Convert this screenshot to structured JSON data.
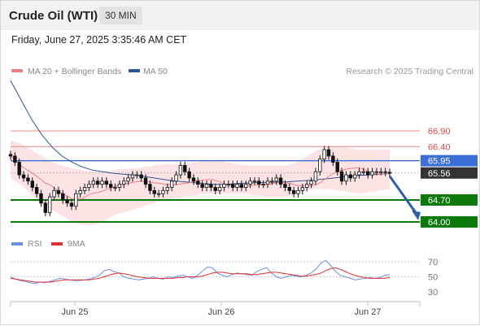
{
  "header": {
    "title": "Crude Oil (WTI)",
    "interval": "30 MIN",
    "datetime": "Friday, June 27, 2025 3:35:46 AM CET"
  },
  "legend": {
    "ma20": "MA 20 + Bollinger Bands",
    "ma50": "MA 50",
    "copyright": "Research © 2025 Trading Central",
    "rsi": "RSI",
    "rsi_ma": "9MA"
  },
  "colors": {
    "ma20": "#f08080",
    "ma50": "#2f5597",
    "bands": "#fde3e3",
    "current": "#333333",
    "pivot": "#3b6fd6",
    "support": "#0b7a0b",
    "resistance": "#f08a8a",
    "candle": "#111111",
    "rsi": "#6b8fe0",
    "rsi_ma": "#e03030",
    "arrow": "#2e5fa6"
  },
  "chart_data": [
    {
      "type": "candlestick",
      "x_ticks": [
        "Jun 25",
        "Jun 26",
        "Jun 27"
      ],
      "levels": [
        {
          "label": "66.90",
          "value": 66.9,
          "role": "resistance"
        },
        {
          "label": "66.40",
          "value": 66.4,
          "role": "resistance"
        },
        {
          "label": "65.95",
          "value": 65.95,
          "role": "pivot"
        },
        {
          "label": "65.56",
          "value": 65.56,
          "role": "current"
        },
        {
          "label": "64.70",
          "value": 64.7,
          "role": "support"
        },
        {
          "label": "64.00",
          "value": 64.0,
          "role": "support"
        }
      ],
      "current_price": 65.56,
      "forecast": {
        "from": 65.56,
        "to": 64.0,
        "direction": "down"
      },
      "close": [
        66.1,
        65.9,
        65.5,
        65.4,
        65.3,
        65.1,
        64.9,
        64.6,
        64.3,
        64.8,
        65.0,
        64.9,
        64.7,
        64.6,
        64.5,
        64.9,
        65.0,
        65.1,
        65.2,
        65.3,
        65.2,
        65.3,
        65.2,
        65.1,
        65.1,
        65.2,
        65.3,
        65.4,
        65.5,
        65.5,
        65.4,
        65.2,
        65.0,
        64.9,
        64.9,
        65.0,
        65.1,
        65.3,
        65.5,
        65.8,
        65.6,
        65.4,
        65.3,
        65.2,
        65.1,
        65.2,
        65.1,
        65.0,
        65.1,
        65.2,
        65.2,
        65.1,
        65.2,
        65.1,
        65.2,
        65.3,
        65.3,
        65.2,
        65.2,
        65.3,
        65.3,
        65.4,
        65.2,
        65.1,
        65.0,
        64.9,
        65.0,
        65.1,
        65.2,
        65.3,
        65.6,
        66.0,
        66.3,
        66.1,
        65.9,
        65.6,
        65.3,
        65.5,
        65.4,
        65.5,
        65.6,
        65.6,
        65.5,
        65.6,
        65.6,
        65.6,
        65.58,
        65.56
      ],
      "low_envelope": [
        65.4,
        65.2,
        64.9,
        64.6,
        64.4,
        64.2,
        64.0,
        63.9,
        63.9,
        64.0,
        64.2,
        64.3,
        64.4,
        64.5,
        64.6,
        64.7,
        64.75,
        64.8,
        64.85,
        64.9,
        64.9,
        64.9,
        64.9,
        64.9,
        64.85,
        64.8,
        64.8,
        64.8,
        64.9,
        65.0,
        65.05,
        65.05,
        65.0,
        64.95,
        64.9,
        64.95,
        65.0,
        65.05
      ],
      "high_envelope": [
        66.6,
        66.5,
        66.3,
        66.1,
        65.9,
        65.8,
        65.7,
        65.65,
        65.6,
        65.6,
        65.65,
        65.7,
        65.7,
        65.75,
        65.8,
        65.85,
        65.85,
        65.85,
        65.9,
        65.95,
        65.95,
        65.9,
        65.85,
        65.8,
        65.8,
        65.8,
        65.8,
        65.8,
        65.9,
        66.1,
        66.3,
        66.4,
        66.4,
        66.35,
        66.3,
        66.3,
        66.3,
        66.3
      ],
      "ma50": [
        68.5,
        67.9,
        67.3,
        66.8,
        66.4,
        66.1,
        65.9,
        65.75,
        65.65,
        65.6,
        65.55,
        65.52,
        65.5,
        65.45,
        65.4,
        65.35,
        65.3,
        65.28,
        65.25,
        65.22,
        65.2,
        65.2,
        65.22,
        65.24,
        65.25,
        65.26,
        65.27,
        65.28,
        65.3,
        65.32,
        65.35,
        65.38,
        65.42,
        65.45,
        65.48,
        65.5,
        65.52,
        65.54
      ]
    },
    {
      "type": "line",
      "name": "RSI",
      "yticks": [
        70,
        50,
        30
      ],
      "ylim": [
        20,
        80
      ],
      "rsi": [
        50,
        47,
        45,
        44,
        42,
        41,
        43,
        42,
        44,
        46,
        48,
        47,
        46,
        45,
        45,
        46,
        47,
        49,
        52,
        58,
        60,
        57,
        55,
        50,
        48,
        47,
        46,
        47,
        48,
        50,
        48,
        47,
        50,
        49,
        51,
        52,
        50,
        48,
        52,
        58,
        63,
        62,
        55,
        52,
        50,
        53,
        55,
        54,
        53,
        52,
        57,
        60,
        62,
        55,
        50,
        48,
        50,
        52,
        51,
        50,
        52,
        55,
        60,
        68,
        72,
        65,
        57,
        52,
        50,
        48,
        46,
        47,
        48,
        49,
        48,
        49,
        52,
        53
      ],
      "rsi_ma": [
        48,
        47,
        46,
        45,
        44,
        43,
        43,
        43,
        43,
        44,
        45,
        46,
        46,
        46,
        46,
        46,
        46,
        47,
        48,
        50,
        52,
        54,
        55,
        54,
        53,
        51,
        50,
        49,
        48,
        48,
        48,
        48,
        48,
        48,
        49,
        49,
        50,
        50,
        50,
        51,
        53,
        55,
        56,
        56,
        55,
        54,
        54,
        54,
        54,
        53,
        53,
        54,
        55,
        56,
        56,
        55,
        54,
        53,
        52,
        51,
        51,
        52,
        53,
        55,
        58,
        61,
        62,
        60,
        57,
        54,
        52,
        50,
        49,
        48,
        48,
        48,
        48,
        49
      ]
    }
  ]
}
